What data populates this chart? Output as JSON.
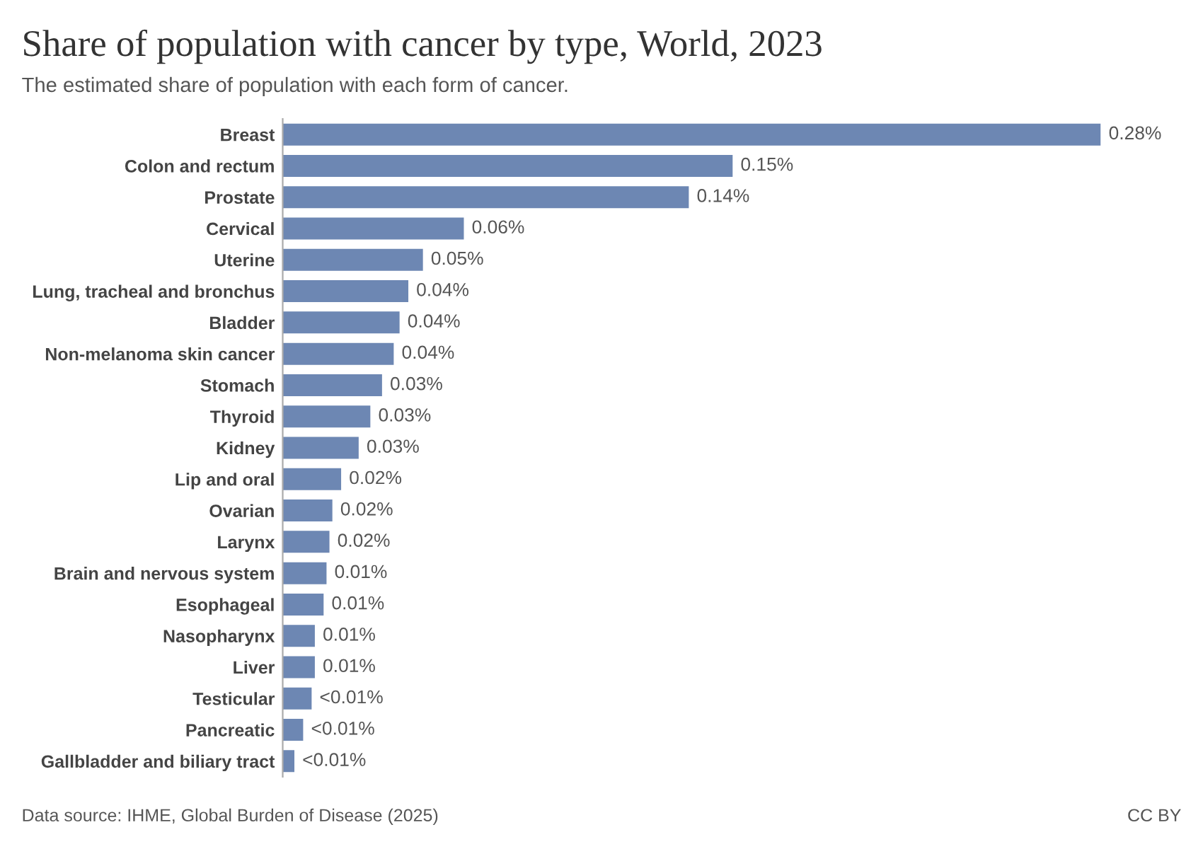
{
  "chart_data": {
    "type": "bar",
    "orientation": "horizontal",
    "title": "Share of population with cancer by type, World, 2023",
    "subtitle": "The estimated share of population with each form of cancer.",
    "categories": [
      "Breast",
      "Colon and rectum",
      "Prostate",
      "Cervical",
      "Uterine",
      "Lung, tracheal and bronchus",
      "Bladder",
      "Non-melanoma skin cancer",
      "Stomach",
      "Thyroid",
      "Kidney",
      "Lip and oral",
      "Ovarian",
      "Larynx",
      "Brain and nervous system",
      "Esophageal",
      "Nasopharynx",
      "Liver",
      "Testicular",
      "Pancreatic",
      "Gallbladder and biliary tract"
    ],
    "values": [
      0.28,
      0.154,
      0.139,
      0.062,
      0.048,
      0.043,
      0.04,
      0.038,
      0.034,
      0.03,
      0.026,
      0.02,
      0.017,
      0.016,
      0.015,
      0.014,
      0.011,
      0.011,
      0.0099,
      0.007,
      0.004
    ],
    "value_labels": [
      "0.28%",
      "0.15%",
      "0.14%",
      "0.06%",
      "0.05%",
      "0.04%",
      "0.04%",
      "0.04%",
      "0.03%",
      "0.03%",
      "0.03%",
      "0.02%",
      "0.02%",
      "0.02%",
      "0.01%",
      "0.01%",
      "0.01%",
      "0.01%",
      "<0.01%",
      "<0.01%",
      "<0.01%"
    ],
    "color": "#6d87b3",
    "grid": false,
    "legend": false,
    "annotations": [
      "Data source: IHME, Global Burden of Disease (2025)",
      "CC BY"
    ]
  }
}
